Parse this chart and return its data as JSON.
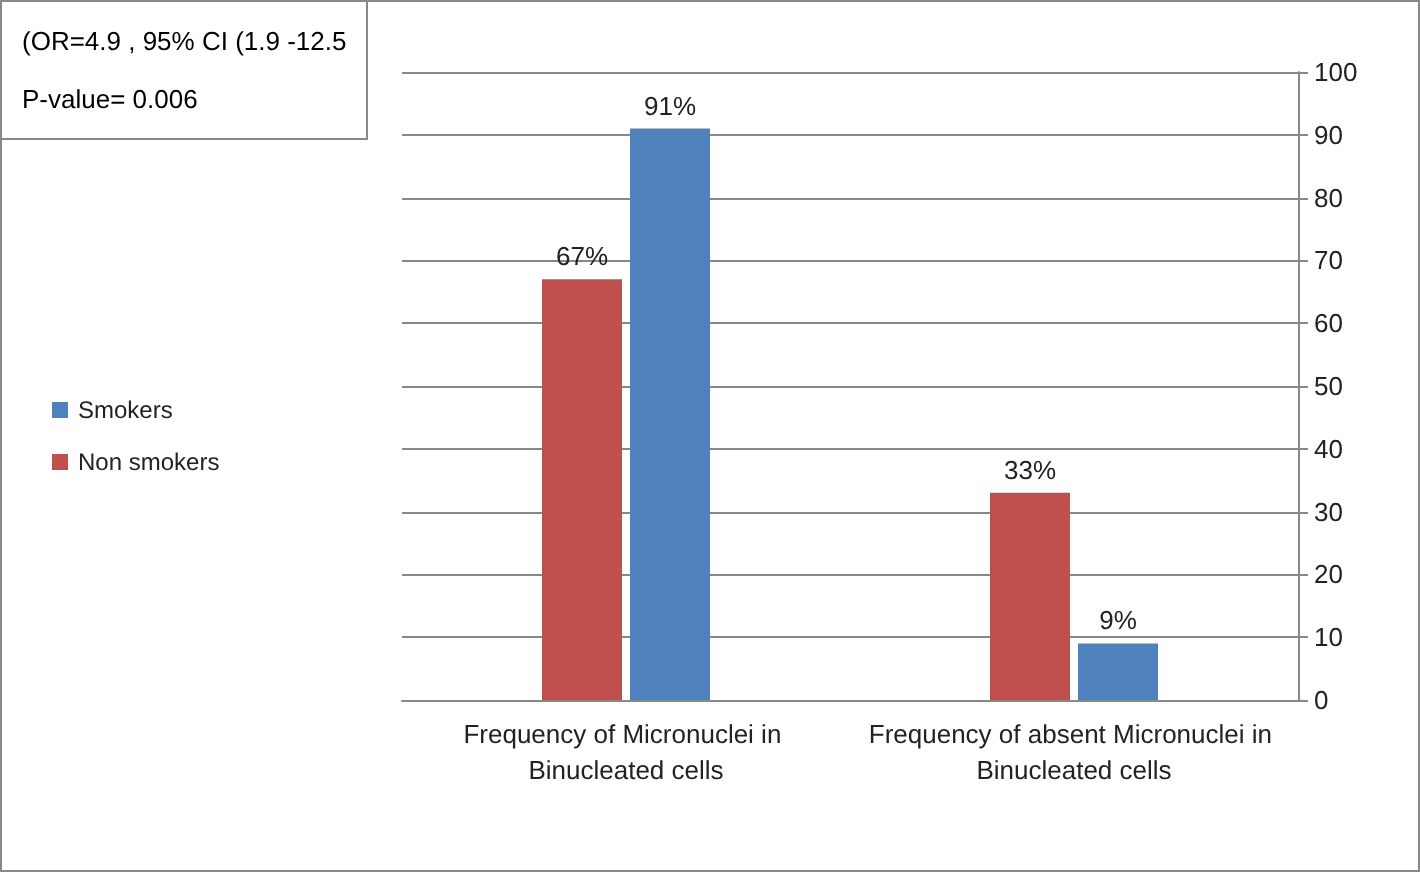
{
  "chart_data": {
    "type": "bar",
    "categories": [
      "Frequency of Micronuclei in Binucleated cells",
      "Frequency of absent Micronuclei in Binucleated cells"
    ],
    "series": [
      {
        "name": "Non smokers",
        "color": "#c0504d",
        "values": [
          67,
          33
        ],
        "value_labels": [
          "67%",
          "33%"
        ]
      },
      {
        "name": "Smokers",
        "color": "#4f81bd",
        "values": [
          91,
          9
        ],
        "value_labels": [
          "91%",
          "9%"
        ]
      }
    ],
    "ylim": [
      0,
      100
    ],
    "yticks": [
      0,
      10,
      20,
      30,
      40,
      50,
      60,
      70,
      80,
      90,
      100
    ],
    "grid": "y",
    "legend": "left",
    "annotations": [
      "(OR=4.9 , 95% CI (1.9 -12.5",
      "P-value= 0.006"
    ]
  }
}
